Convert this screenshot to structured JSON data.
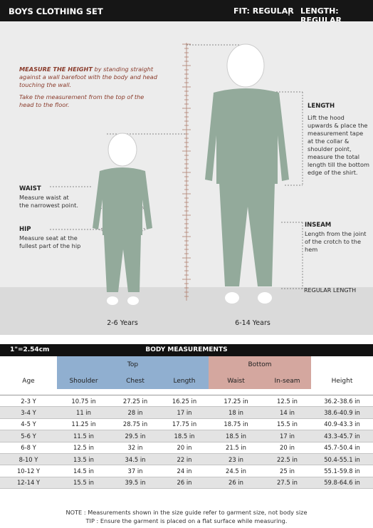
{
  "header": {
    "title": "BOYS CLOTHING SET",
    "fit": "FIT: REGULAR",
    "separator": "|",
    "length": "LENGTH: REGULAR"
  },
  "illustration": {
    "measure_height": {
      "heading": "MEASURE THE HEIGHT",
      "text": "by standing straight against a wall barefoot with the body  and head touching the wall.",
      "tip": "Take the measurement from the top of the head to the floor."
    },
    "waist": {
      "label": "WAIST",
      "text": "Measure  waist at the narrowest point."
    },
    "hip": {
      "label": "HIP",
      "text": "Measure seat at the fullest part of the hip"
    },
    "length": {
      "label": "LENGTH",
      "text": "Lift the hood upwards & place the measurement tape at the collar & shoulder point, measure the total length till the bottom edge of the shirt."
    },
    "inseam": {
      "label": "INSEAM",
      "text": "Length from the joint of the crotch to the hem"
    },
    "regular_length": "REGULAR LENGTH",
    "ages": [
      "2-6 Years",
      "6-14 Years"
    ]
  },
  "table": {
    "unit": "1\"=2.54cm",
    "title": "BODY MEASUREMENTS",
    "groups": [
      "Top",
      "Bottom"
    ],
    "columns": [
      "Age",
      "Shoulder",
      "Chest",
      "Length",
      "Waist",
      "In-seam",
      "Height"
    ],
    "rows": [
      [
        "2-3 Y",
        "10.75 in",
        "27.25 in",
        "16.25 in",
        "17.25 in",
        "12.5 in",
        "36.2-38.6 in"
      ],
      [
        "3-4 Y",
        "11 in",
        "28 in",
        "17 in",
        "18 in",
        "14 in",
        "38.6-40.9 in"
      ],
      [
        "4-5 Y",
        "11.25 in",
        "28.75 in",
        "17.75 in",
        "18.75 in",
        "15.5 in",
        "40.9-43.3 in"
      ],
      [
        "5-6 Y",
        "11.5 in",
        "29.5 in",
        "18.5 in",
        "18.5 in",
        "17 in",
        "43.3-45.7 in"
      ],
      [
        "6-8 Y",
        "12.5 in",
        "32 in",
        "20 in",
        "21.5 in",
        "20 in",
        "45.7-50.4 in"
      ],
      [
        "8-10 Y",
        "13.5 in",
        "34.5 in",
        "22 in",
        "23 in",
        "22.5 in",
        "50.4-55.1 in"
      ],
      [
        "10-12 Y",
        "14.5 in",
        "37 in",
        "24 in",
        "24.5 in",
        "25 in",
        "55.1-59.8 in"
      ],
      [
        "12-14 Y",
        "15.5 in",
        "39.5 in",
        "26 in",
        "26 in",
        "27.5 in",
        "59.8-64.6 in"
      ]
    ]
  },
  "notes": [
    "NOTE : Measurements shown in the size guide refer to garment size, not body size",
    "TIP : Ensure the garment is placed on a flat surface while measuring."
  ]
}
